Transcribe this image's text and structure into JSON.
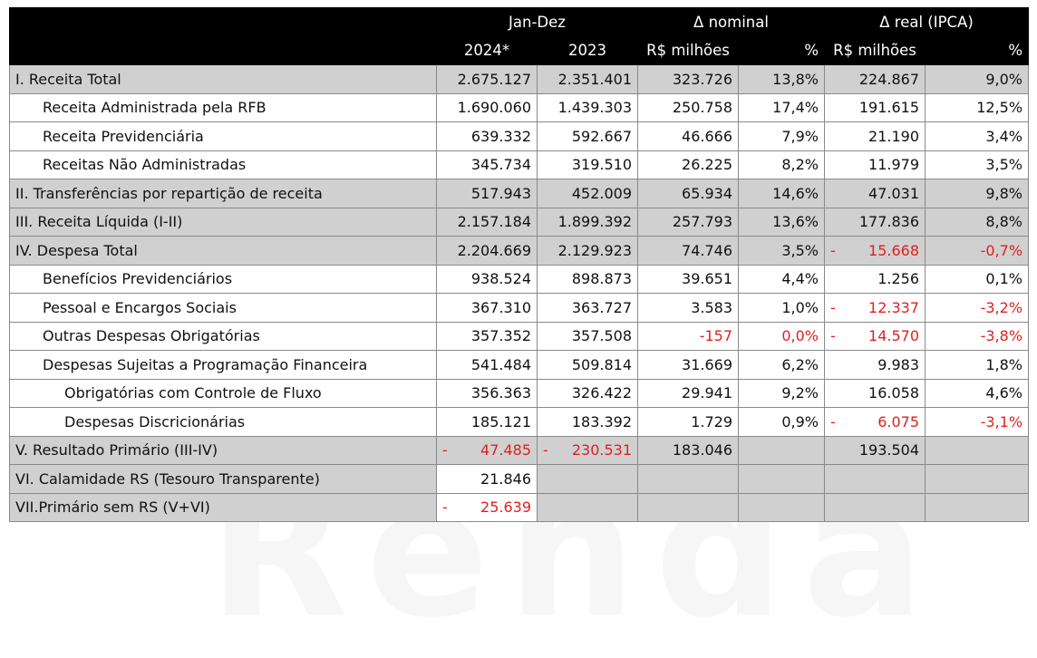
{
  "header": {
    "group_jan_dez": "Jan-Dez",
    "group_nominal": "Δ nominal",
    "group_real": "Δ real (IPCA)",
    "col_2024": "2024*",
    "col_2023": "2023",
    "col_nom_rs": "R$ milhões",
    "col_nom_pct": "%",
    "col_real_rs": "R$ milhões",
    "col_real_pct": "%"
  },
  "rows": [
    {
      "label": "I. Receita Total",
      "v2024": "2.675.127",
      "v2023": "2.351.401",
      "nom": "323.726",
      "nom_pct": "13,8%",
      "real": "224.867",
      "real_pct": "9,0%"
    },
    {
      "label": "Receita Administrada pela RFB",
      "v2024": "1.690.060",
      "v2023": "1.439.303",
      "nom": "250.758",
      "nom_pct": "17,4%",
      "real": "191.615",
      "real_pct": "12,5%"
    },
    {
      "label": "Receita Previdenciária",
      "v2024": "639.332",
      "v2023": "592.667",
      "nom": "46.666",
      "nom_pct": "7,9%",
      "real": "21.190",
      "real_pct": "3,4%"
    },
    {
      "label": "Receitas Não Administradas",
      "v2024": "345.734",
      "v2023": "319.510",
      "nom": "26.225",
      "nom_pct": "8,2%",
      "real": "11.979",
      "real_pct": "3,5%"
    },
    {
      "label": "II. Transferências por repartição de receita",
      "v2024": "517.943",
      "v2023": "452.009",
      "nom": "65.934",
      "nom_pct": "14,6%",
      "real": "47.031",
      "real_pct": "9,8%"
    },
    {
      "label": "III. Receita Líquida (I-II)",
      "v2024": "2.157.184",
      "v2023": "1.899.392",
      "nom": "257.793",
      "nom_pct": "13,6%",
      "real": "177.836",
      "real_pct": "8,8%"
    },
    {
      "label": "IV. Despesa Total",
      "v2024": "2.204.669",
      "v2023": "2.129.923",
      "nom": "74.746",
      "nom_pct": "3,5%",
      "real": "15.668",
      "real_pct": "-0,7%"
    },
    {
      "label": "Benefícios Previdenciários",
      "v2024": "938.524",
      "v2023": "898.873",
      "nom": "39.651",
      "nom_pct": "4,4%",
      "real": "1.256",
      "real_pct": "0,1%"
    },
    {
      "label": "Pessoal e Encargos Sociais",
      "v2024": "367.310",
      "v2023": "363.727",
      "nom": "3.583",
      "nom_pct": "1,0%",
      "real": "12.337",
      "real_pct": "-3,2%"
    },
    {
      "label": "Outras Despesas Obrigatórias",
      "v2024": "357.352",
      "v2023": "357.508",
      "nom": "-157",
      "nom_pct": "0,0%",
      "real": "14.570",
      "real_pct": "-3,8%"
    },
    {
      "label": "Despesas Sujeitas a Programação Financeira",
      "v2024": "541.484",
      "v2023": "509.814",
      "nom": "31.669",
      "nom_pct": "6,2%",
      "real": "9.983",
      "real_pct": "1,8%"
    },
    {
      "label": "Obrigatórias com Controle de Fluxo",
      "v2024": "356.363",
      "v2023": "326.422",
      "nom": "29.941",
      "nom_pct": "9,2%",
      "real": "16.058",
      "real_pct": "4,6%"
    },
    {
      "label": "Despesas Discricionárias",
      "v2024": "185.121",
      "v2023": "183.392",
      "nom": "1.729",
      "nom_pct": "0,9%",
      "real": "6.075",
      "real_pct": "-3,1%"
    },
    {
      "label": "V. Resultado Primário (III-IV)",
      "v2024": "47.485",
      "v2023": "230.531",
      "nom": "183.046",
      "real": "193.504"
    },
    {
      "label": "VI. Calamidade RS (Tesouro Transparente)",
      "v2024": "21.846"
    },
    {
      "label": "VII.Primário sem RS (V+VI)",
      "v2024": "25.639"
    }
  ],
  "dash_mark": "-",
  "watermark": "W Renda",
  "colors": {
    "header_bg": "#000000",
    "row_grey": "#d0d0d0",
    "negative": "#e02020"
  }
}
